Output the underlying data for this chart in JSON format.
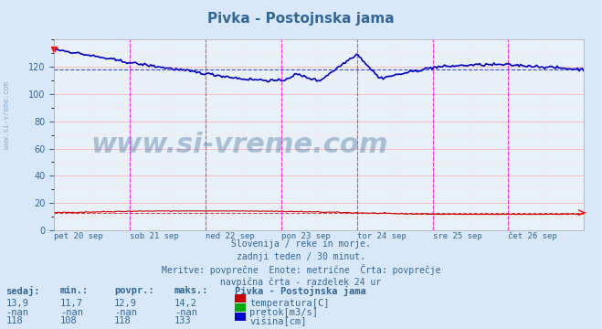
{
  "title": "Pivka - Postojnska jama",
  "background_color": "#d8e8f8",
  "plot_bg_color": "#e8f0f8",
  "grid_color_major": "#ffaaaa",
  "grid_color_minor": "#ffdddd",
  "ylabel_color": "#336699",
  "x_labels": [
    "pet 20 sep",
    "sob 21 sep",
    "ned 22 sep",
    "pon 23 sep",
    "tor 24 sep",
    "sre 25 sep",
    "čet 26 sep"
  ],
  "subtitle_lines": [
    "Slovenija / reke in morje.",
    "zadnji teden / 30 minut.",
    "Meritve: povprečne  Enote: metrične  Črta: povprečje",
    "navpična črta - razdelek 24 ur"
  ],
  "table_headers": [
    "sedaj:",
    "min.:",
    "povpr.:",
    "maks.:"
  ],
  "table_data": [
    [
      "13,9",
      "11,7",
      "12,9",
      "14,2"
    ],
    [
      "-nan",
      "-nan",
      "-nan",
      "-nan"
    ],
    [
      "118",
      "108",
      "118",
      "133"
    ]
  ],
  "legend_title": "Pivka - Postojnska jama",
  "legend_items": [
    {
      "label": "temperatura[C]",
      "color": "#cc0000"
    },
    {
      "label": "pretok[m3/s]",
      "color": "#00aa00"
    },
    {
      "label": "višina[cm]",
      "color": "#0000cc"
    }
  ],
  "ylim": [
    0,
    140
  ],
  "yticks": [
    0,
    20,
    40,
    60,
    80,
    100,
    120
  ],
  "num_days": 7,
  "avg_temp": 12.9,
  "avg_visina": 118,
  "watermark": "www.si-vreme.com"
}
